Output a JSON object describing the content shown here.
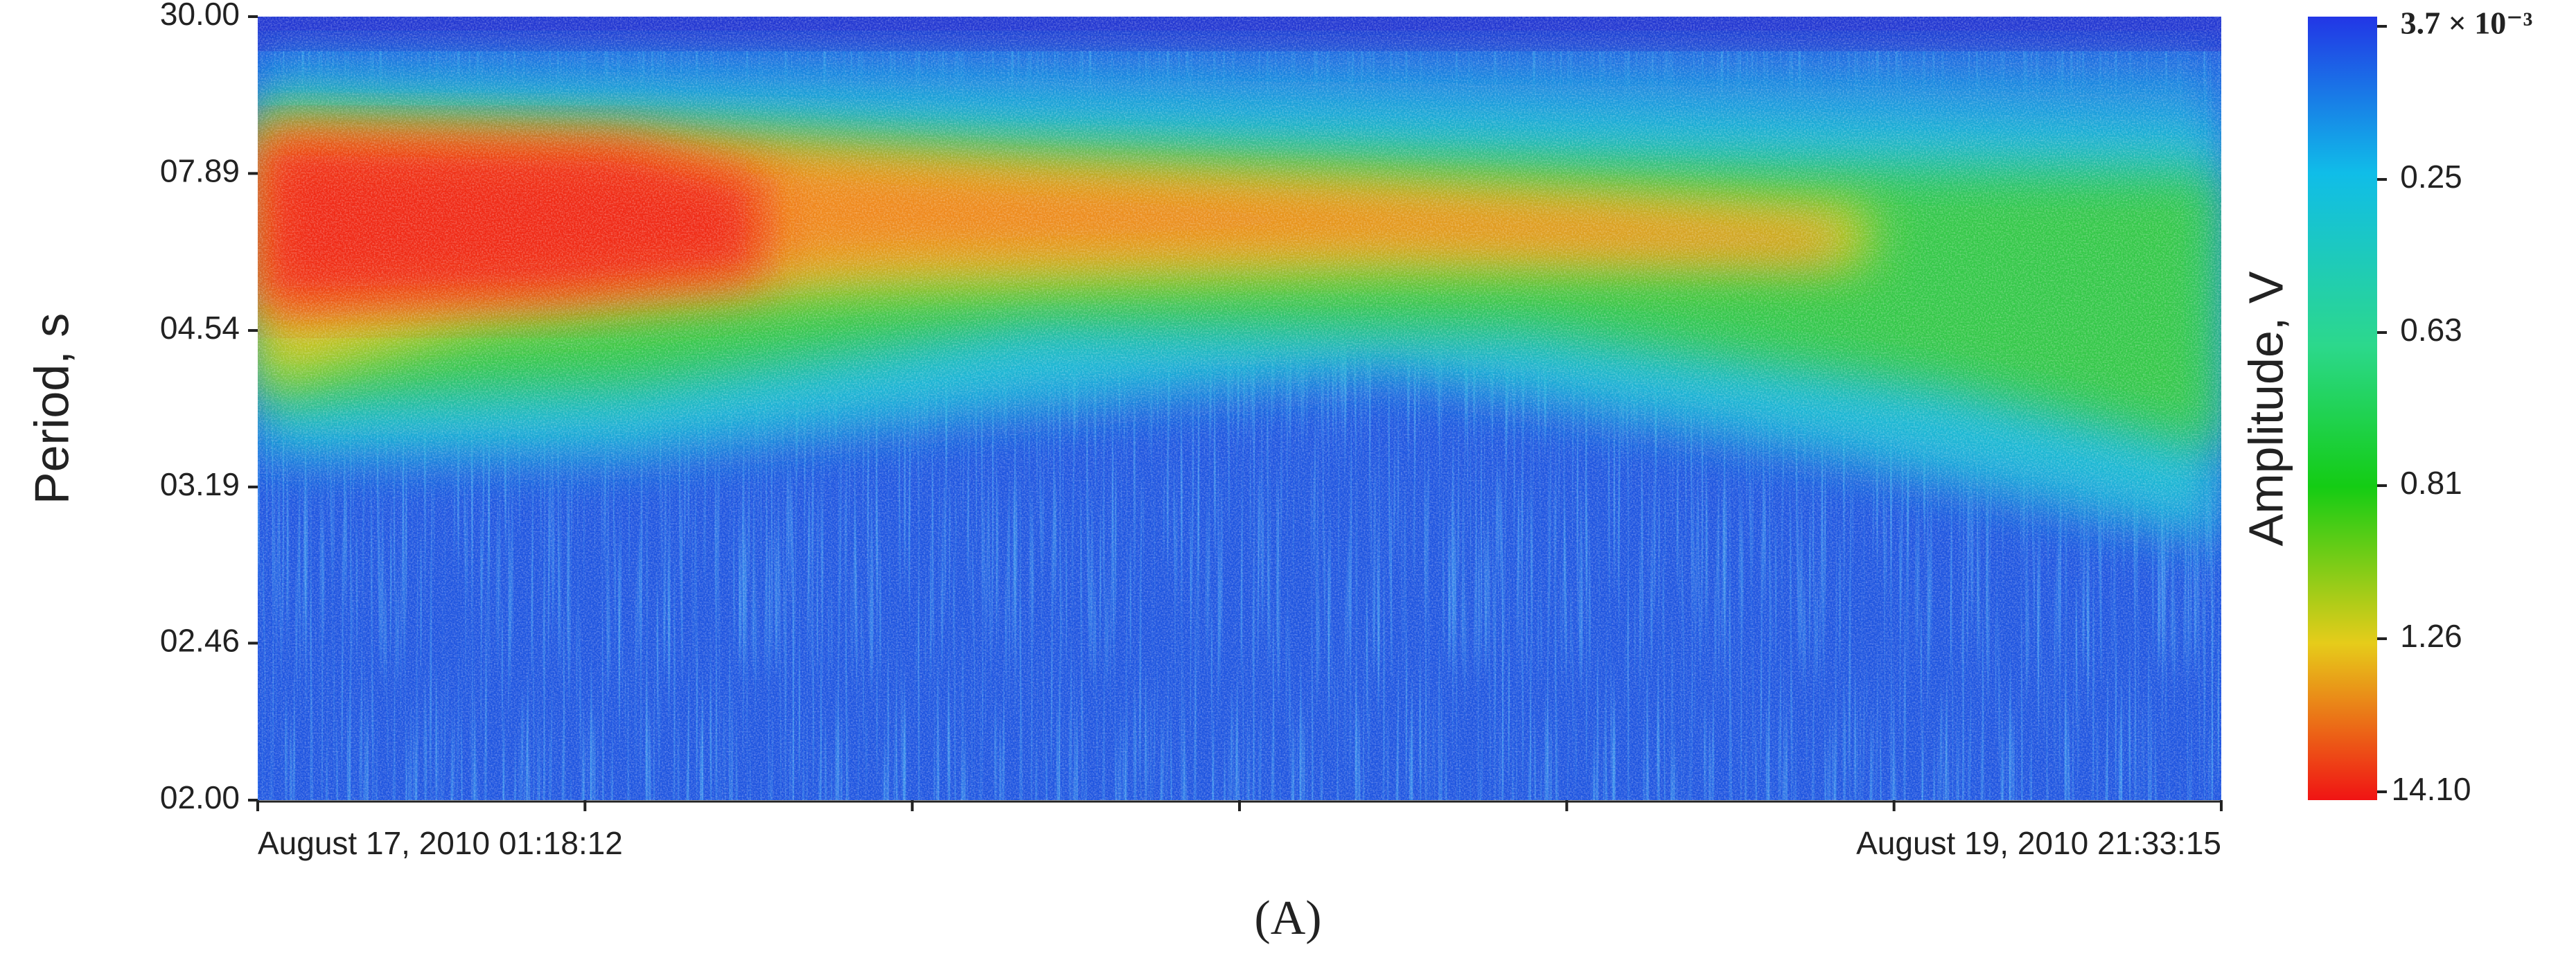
{
  "chart_data": {
    "type": "heatmap",
    "ylabel": "Period, s",
    "y_scale": "reciprocal",
    "ylim": [
      2,
      30
    ],
    "yticks": [
      {
        "value": 2,
        "label": "02.00"
      },
      {
        "value": 2.46,
        "label": "02.46"
      },
      {
        "value": 3.19,
        "label": "03.19"
      },
      {
        "value": 4.54,
        "label": "04.54"
      },
      {
        "value": 7.89,
        "label": "07.89"
      },
      {
        "value": 30,
        "label": "30.00"
      }
    ],
    "categories": [
      "August 17, 2010 01:18:12",
      null,
      null,
      null,
      null,
      null,
      "August 19, 2010 21:33:15"
    ],
    "colorbar": {
      "label": "Amplitude, V",
      "ticks": [
        {
          "value": 0.0037,
          "label": "3.7 × 10⁻³"
        },
        {
          "value": 0.25,
          "label": "0.25"
        },
        {
          "value": 0.63,
          "label": "0.63"
        },
        {
          "value": 0.81,
          "label": "0.81"
        },
        {
          "value": 1.26,
          "label": "1.26"
        },
        {
          "value": 14.1,
          "label": "14.10"
        }
      ]
    },
    "caption": "(A)"
  }
}
